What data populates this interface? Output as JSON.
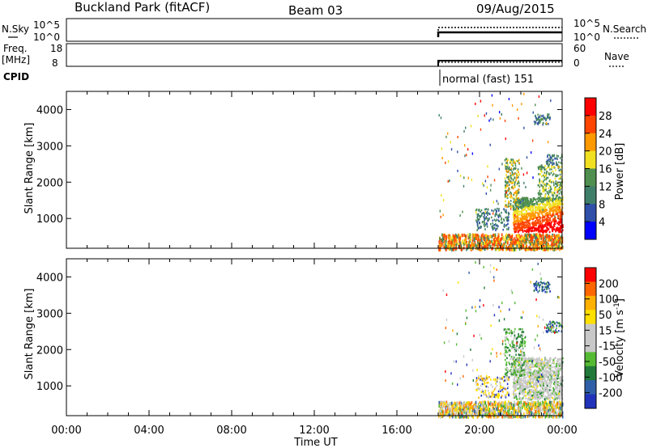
{
  "header": {
    "station": "Buckland Park (fitACF)",
    "beam": "Beam 03",
    "date": "09/Aug/2015"
  },
  "colors": {
    "power_scale": [
      "#0000ff",
      "#2f4fa8",
      "#3f7f6a",
      "#4f8f4f",
      "#f0e020",
      "#ff9900",
      "#ff4500",
      "#ff0000"
    ],
    "velocity_scale": [
      "#ff0000",
      "#ff6600",
      "#ffb000",
      "#ffe000",
      "#c8c8c8",
      "#c8c8c8",
      "#55bb33",
      "#227a3a",
      "#2f5fa8",
      "#2233bb"
    ]
  },
  "chart_data": [
    {
      "type": "line",
      "panel": "noise",
      "left_label": "N.Sky",
      "right_label": "N.Search",
      "left_ticks": [
        "10^5",
        "10^0"
      ],
      "right_ticks": [
        "10^5",
        "10^0"
      ],
      "series": [
        {
          "name": "N.Sky",
          "x": [
            "18:00",
            "24:00"
          ],
          "y_level": "mid"
        },
        {
          "name": "N.Search",
          "x": [
            "18:00",
            "24:00"
          ],
          "y_level": "high"
        }
      ]
    },
    {
      "type": "line",
      "panel": "frequency",
      "left_label": "Freq.",
      "left_unit": "[MHz]",
      "right_label": "Nave",
      "left_ticks": [
        "18",
        "8"
      ],
      "right_ticks": [
        "60",
        "0"
      ],
      "series": [
        {
          "name": "Freq.",
          "x": [
            "18:00",
            "24:00"
          ],
          "y_level": "low"
        },
        {
          "name": "Nave",
          "x": [
            "18:00",
            "24:00"
          ],
          "y_level": "low"
        }
      ]
    },
    {
      "type": "text",
      "panel": "cpid",
      "label": "CPID",
      "mode_text": "normal (fast) 151",
      "start": "18:00"
    },
    {
      "type": "heatmap",
      "panel": "power",
      "ylabel": "Slant Range [km]",
      "y_ticks": [
        1000,
        2000,
        3000,
        4000
      ],
      "ylim": [
        180,
        4500
      ],
      "colorbar_label": "Power [dB]",
      "colorbar_ticks": [
        4,
        8,
        12,
        16,
        20,
        24,
        28
      ],
      "data_start": "18:00"
    },
    {
      "type": "heatmap",
      "panel": "velocity",
      "ylabel": "Slant Range [km]",
      "y_ticks": [
        1000,
        2000,
        3000,
        4000
      ],
      "ylim": [
        180,
        4500
      ],
      "colorbar_label": "Velocity [m s",
      "colorbar_label_sup": "-1",
      "colorbar_label_end": "]",
      "colorbar_ticks": [
        200,
        100,
        50,
        15,
        -15,
        -50,
        -100,
        -200
      ],
      "data_start": "18:00"
    }
  ],
  "x_axis": {
    "ticks": [
      "00:00",
      "04:00",
      "08:00",
      "12:00",
      "16:00",
      "20:00",
      "00:00"
    ],
    "xlabel": "Time UT"
  }
}
